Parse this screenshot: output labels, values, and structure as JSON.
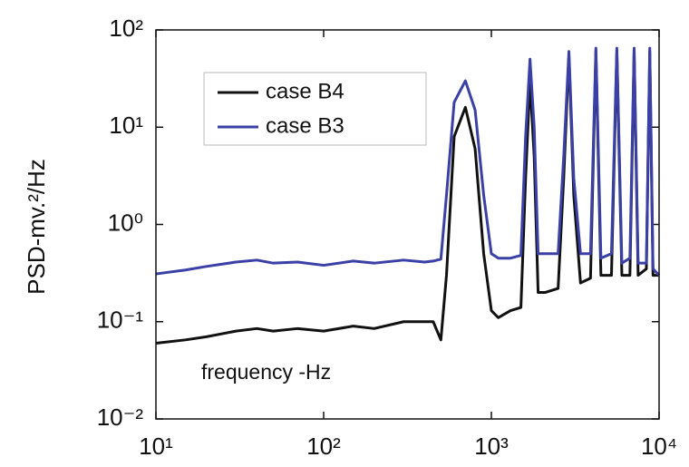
{
  "chart_data": {
    "type": "line",
    "ylabel": "PSD-mv.²/Hz",
    "annotation": "frequency -Hz",
    "xscale": "log",
    "yscale": "log",
    "xlim": [
      10,
      10000
    ],
    "ylim": [
      0.01,
      100
    ],
    "xticks": [
      {
        "value": 10,
        "label": "10¹"
      },
      {
        "value": 100,
        "label": "10²"
      },
      {
        "value": 1000,
        "label": "10³"
      },
      {
        "value": 10000,
        "label": "10⁴"
      }
    ],
    "yticks": [
      {
        "value": 0.01,
        "label": "10⁻²"
      },
      {
        "value": 0.1,
        "label": "10⁻¹"
      },
      {
        "value": 1,
        "label": "10⁰"
      },
      {
        "value": 10,
        "label": "10¹"
      },
      {
        "value": 100,
        "label": "10²"
      }
    ],
    "legend": "upper left",
    "x": [
      10,
      15,
      20,
      30,
      40,
      50,
      70,
      100,
      150,
      200,
      300,
      400,
      450,
      500,
      540,
      600,
      700,
      800,
      900,
      1000,
      1100,
      1300,
      1500,
      1600,
      1700,
      1800,
      1900,
      2100,
      2500,
      2700,
      2900,
      3100,
      3400,
      3900,
      4200,
      4500,
      5200,
      5600,
      6000,
      6700,
      7100,
      7500,
      8400,
      8800,
      9200,
      10000
    ],
    "series": [
      {
        "name": "case B4",
        "color": "#111111",
        "values": [
          0.06,
          0.065,
          0.07,
          0.08,
          0.085,
          0.08,
          0.085,
          0.08,
          0.09,
          0.085,
          0.1,
          0.1,
          0.1,
          0.065,
          0.3,
          8,
          16,
          6,
          0.5,
          0.13,
          0.11,
          0.13,
          0.14,
          3,
          30,
          5,
          0.2,
          0.2,
          0.22,
          3,
          55,
          2,
          0.25,
          0.28,
          60,
          0.3,
          0.3,
          60,
          0.3,
          0.3,
          60,
          0.3,
          0.35,
          60,
          0.3,
          0.3
        ]
      },
      {
        "name": "case B3",
        "color": "#3b40a6",
        "values": [
          0.31,
          0.34,
          0.37,
          0.41,
          0.43,
          0.4,
          0.41,
          0.38,
          0.42,
          0.4,
          0.43,
          0.41,
          0.42,
          0.44,
          2,
          18,
          30,
          15,
          2,
          0.5,
          0.45,
          0.45,
          0.48,
          8,
          50,
          10,
          0.5,
          0.5,
          0.5,
          5,
          60,
          3,
          0.5,
          0.5,
          65,
          0.45,
          0.5,
          65,
          0.4,
          0.45,
          65,
          0.4,
          0.4,
          65,
          0.35,
          0.3
        ]
      }
    ]
  }
}
